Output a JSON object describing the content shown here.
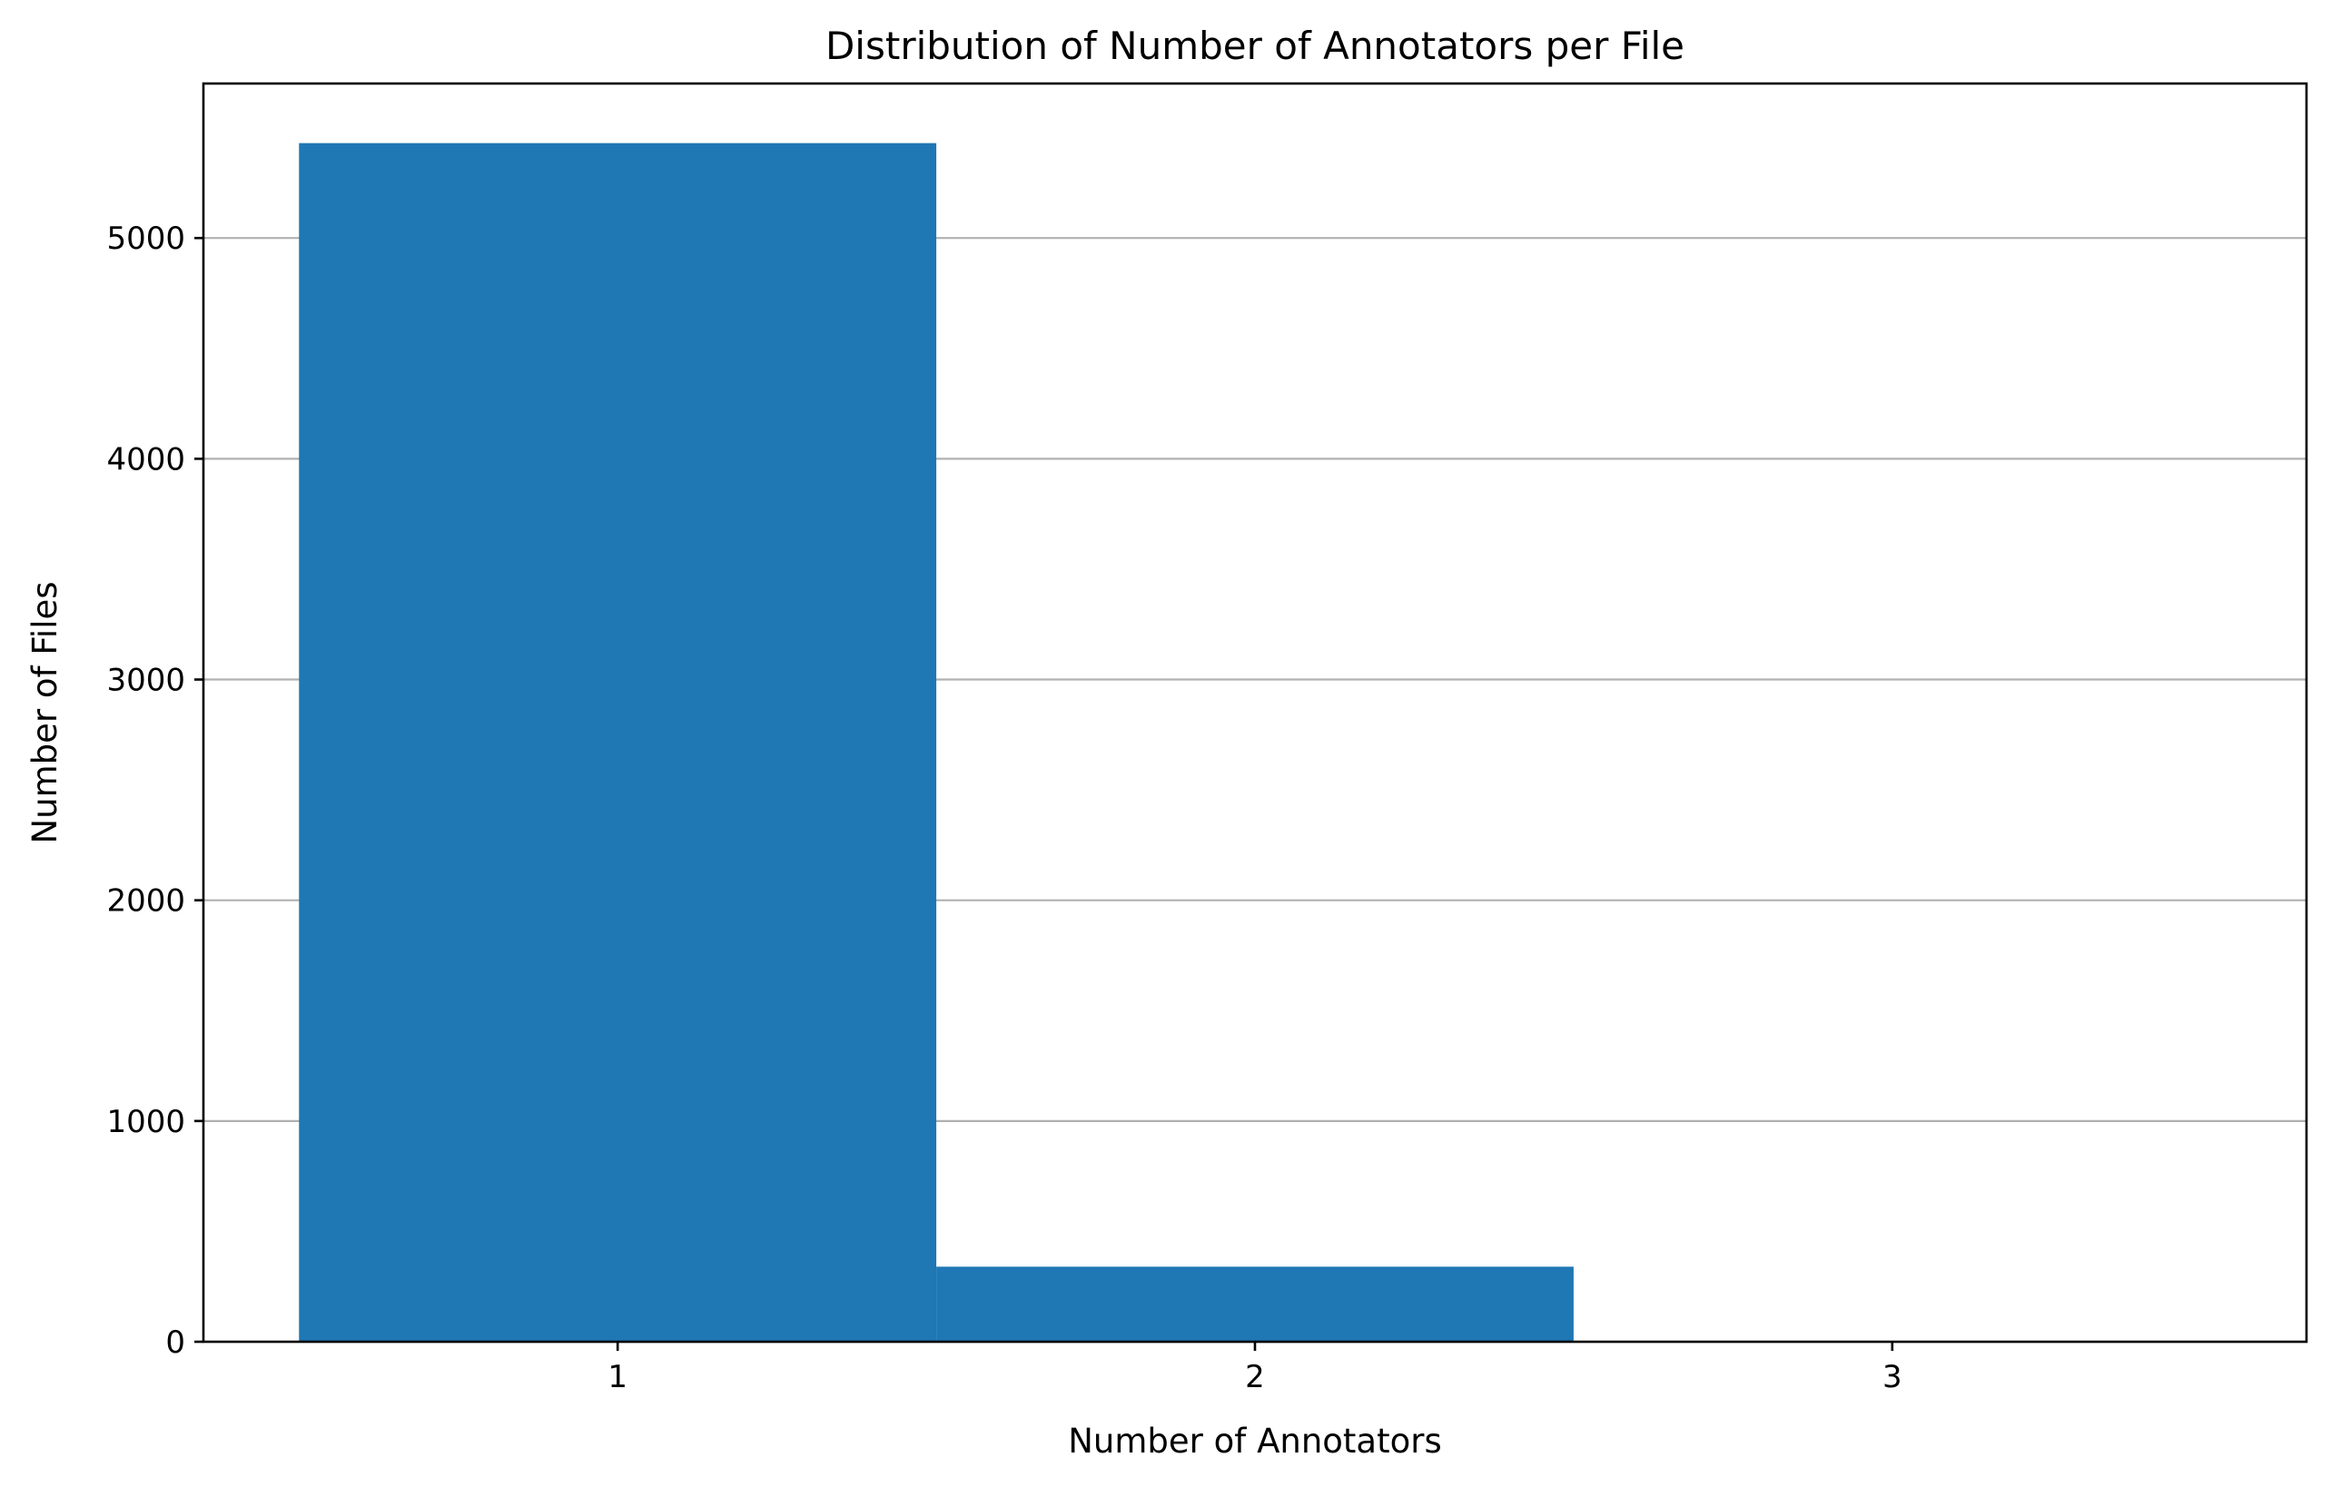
{
  "chart_data": {
    "type": "bar",
    "title": "Distribution of Number of Annotators per File",
    "xlabel": "Number of Annotators",
    "ylabel": "Number of Files",
    "categories": [
      1,
      2,
      3
    ],
    "values": [
      5430,
      340,
      3
    ],
    "xlim": [
      0.35,
      3.65
    ],
    "ylim": [
      0,
      5700
    ],
    "yticks": [
      0,
      1000,
      2000,
      3000,
      4000,
      5000
    ],
    "xticks": [
      1,
      2,
      3
    ],
    "grid": "y-major",
    "legend": "none",
    "bar_color": "#1f77b4"
  }
}
